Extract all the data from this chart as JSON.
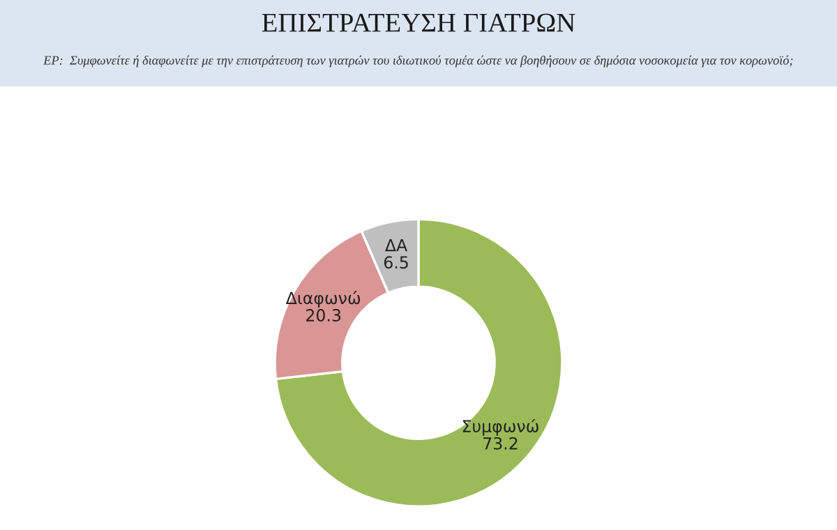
{
  "chart_data": {
    "type": "donut",
    "title": "ΕΠΙΣΤΡΑΤΕΥΣΗ ΓΙΑΤΡΩΝ",
    "subtitle": "ΕΡ:  Συμφωνείτε ή διαφωνείτε με την επιστράτευση των γιατρών του ιδιωτικού τομέα ώστε να βοηθήσουν σε δημόσια νοσοκομεία για τον κορωνοϊό;",
    "categories": [
      "Συμφωνώ",
      "Διαφωνώ",
      "ΔΑ"
    ],
    "values": [
      73.2,
      20.3,
      6.5
    ],
    "colors": [
      "#9bbb59",
      "#d99694",
      "#bfbfbf"
    ],
    "data_labels": true
  }
}
